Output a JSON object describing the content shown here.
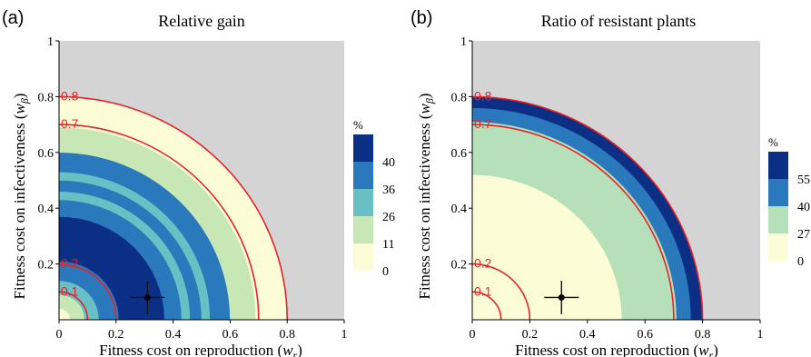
{
  "chart_data": [
    {
      "type": "heatmap",
      "panel_label": "(a)",
      "title": "Relative gain",
      "xlabel": "Fitness cost on reproduction (",
      "xlabel_var": "w",
      "xlabel_sub": "r",
      "xlabel_close": ")",
      "ylabel": "Fitness cost on infectiveness (",
      "ylabel_var": "w",
      "ylabel_sub": "β",
      "ylabel_close": ")",
      "xlim": [
        0,
        1
      ],
      "ylim": [
        0,
        1
      ],
      "xticks": [
        "0",
        "0.2",
        "0.4",
        "0.6",
        "0.8",
        "1"
      ],
      "yticks": [
        "0.2",
        "0.4",
        "0.6",
        "0.8",
        "1"
      ],
      "background_color": "#d4d4d4",
      "legend": {
        "title": "%",
        "placement": "right",
        "ticks": [
          "40",
          "36",
          "26",
          "11",
          "0"
        ],
        "colors": [
          "#0c2f86",
          "#2a79bd",
          "#68c0c4",
          "#c7e8b4",
          "#fcfdd6"
        ]
      },
      "bands": [
        {
          "r_in": 0.0,
          "r_out": 0.04,
          "color": "#fcfdd6"
        },
        {
          "r_in": 0.04,
          "r_out": 0.09,
          "color": "#c7e8b4"
        },
        {
          "r_in": 0.09,
          "r_out": 0.14,
          "color": "#68c0c4"
        },
        {
          "r_in": 0.14,
          "r_out": 0.21,
          "color": "#2a79bd"
        },
        {
          "r_in": 0.21,
          "r_out": 0.37,
          "color": "#0c2f86"
        },
        {
          "r_in": 0.37,
          "r_out": 0.43,
          "color": "#2a79bd"
        },
        {
          "r_in": 0.43,
          "r_out": 0.46,
          "color": "#68c0c4"
        },
        {
          "r_in": 0.46,
          "r_out": 0.5,
          "color": "#2a79bd"
        },
        {
          "r_in": 0.5,
          "r_out": 0.53,
          "color": "#68c0c4"
        },
        {
          "r_in": 0.53,
          "r_out": 0.6,
          "color": "#2a79bd"
        },
        {
          "r_in": 0.6,
          "r_out": 0.69,
          "color": "#c7e8b4"
        },
        {
          "r_in": 0.69,
          "r_out": 0.8,
          "color": "#fcfdd6"
        }
      ],
      "contours": [
        {
          "level": 0.1,
          "label": "0.1"
        },
        {
          "level": 0.2,
          "label": "0.2"
        },
        {
          "level": 0.7,
          "label": "0.7"
        },
        {
          "level": 0.8,
          "label": "0.8"
        }
      ],
      "contour_color": "#e8222a",
      "point": {
        "x": 0.31,
        "y": 0.08,
        "xerr": 0.06,
        "yerr": 0.06
      }
    },
    {
      "type": "heatmap",
      "panel_label": "(b)",
      "title": "Ratio of resistant plants",
      "xlabel": "Fitness cost on reproduction (",
      "xlabel_var": "w",
      "xlabel_sub": "r",
      "xlabel_close": ")",
      "ylabel": "Fitness cost on infectiveness (",
      "ylabel_var": "w",
      "ylabel_sub": "β",
      "ylabel_close": ")",
      "xlim": [
        0,
        1
      ],
      "ylim": [
        0,
        1
      ],
      "xticks": [
        "0",
        "0.2",
        "0.4",
        "0.6",
        "0.8",
        "1"
      ],
      "yticks": [
        "0.2",
        "0.4",
        "0.6",
        "0.8",
        "1"
      ],
      "background_color": "#d4d4d4",
      "legend": {
        "title": "%",
        "placement": "right",
        "ticks": [
          "55",
          "40",
          "27",
          "0"
        ],
        "colors": [
          "#0c2f86",
          "#2a79bd",
          "#b6e0b9",
          "#fcfdd6"
        ]
      },
      "bands": [
        {
          "r_in": 0.0,
          "r_out": 0.52,
          "color": "#fcfdd6"
        },
        {
          "r_in": 0.52,
          "r_out": 0.71,
          "color": "#b6e0b9"
        },
        {
          "r_in": 0.71,
          "r_out": 0.76,
          "color": "#2a79bd"
        },
        {
          "r_in": 0.76,
          "r_out": 0.8,
          "color": "#0c2f86"
        }
      ],
      "contours": [
        {
          "level": 0.1,
          "label": "0.1"
        },
        {
          "level": 0.2,
          "label": "0.2"
        },
        {
          "level": 0.7,
          "label": "0.7"
        },
        {
          "level": 0.8,
          "label": "0.8"
        }
      ],
      "contour_color": "#e8222a",
      "point": {
        "x": 0.31,
        "y": 0.08,
        "xerr": 0.06,
        "yerr": 0.06
      }
    }
  ]
}
